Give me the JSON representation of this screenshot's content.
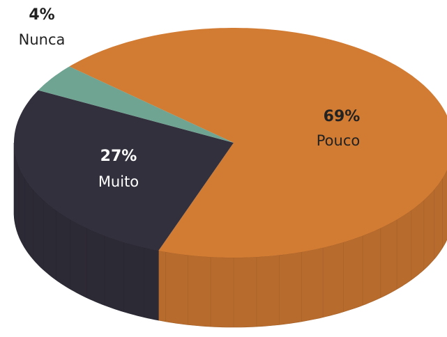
{
  "chart_data": {
    "type": "pie",
    "categories": [
      "Pouco",
      "Muito",
      "Nunca"
    ],
    "values": [
      69,
      27,
      4
    ],
    "value_labels": [
      "69%",
      "27%",
      "4%"
    ],
    "colors": [
      "#d27b33",
      "#33303d",
      "#6fa392"
    ]
  }
}
